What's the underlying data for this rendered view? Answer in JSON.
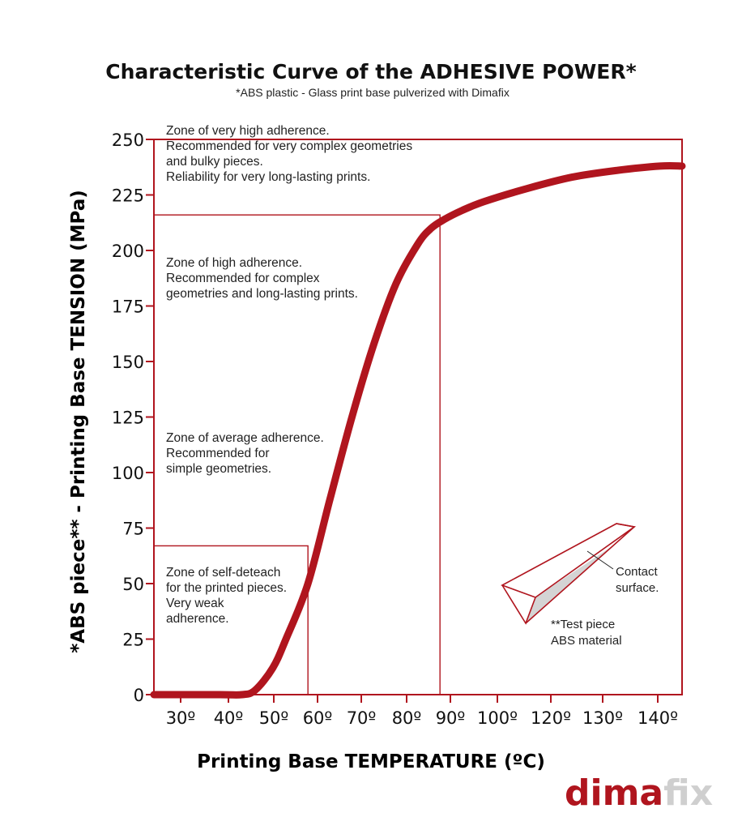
{
  "colors": {
    "accent": "#b0151e",
    "logo_secondary": "#cfcfcf",
    "text": "#111111"
  },
  "chart_data": {
    "type": "line",
    "title": "Characteristic Curve of the ADHESIVE POWER*",
    "subtitle": "*ABS plastic - Glass print base pulverized with Dimafix",
    "xlabel": "Printing Base TEMPERATURE (ºC)",
    "ylabel": "*ABS piece** - Printing Base TENSION (MPa)",
    "xlim": [
      25,
      145
    ],
    "ylim": [
      0,
      250
    ],
    "y_ticks": [
      0,
      25,
      50,
      75,
      100,
      125,
      150,
      175,
      200,
      225,
      250
    ],
    "y_tick_labels": [
      "0",
      "25",
      "50",
      "75",
      "100",
      "125",
      "150",
      "175",
      "200",
      "225",
      "250"
    ],
    "x_ticks": [
      30,
      40,
      50,
      60,
      70,
      80,
      90,
      100,
      120,
      130,
      140
    ],
    "x_tick_labels": [
      "30º",
      "40º",
      "50º",
      "60º",
      "70º",
      "80º",
      "90º",
      "100º",
      "120º",
      "130º",
      "140º"
    ],
    "series": [
      {
        "name": "Adhesive power",
        "x": [
          25,
          40,
          45,
          48,
          52,
          55,
          60,
          65,
          70,
          75,
          80,
          85,
          88,
          91,
          95,
          100,
          110,
          120,
          130,
          140,
          145
        ],
        "y": [
          0,
          0,
          0,
          2,
          12,
          25,
          50,
          88,
          125,
          158,
          185,
          203,
          210,
          214,
          218,
          222,
          228,
          233,
          236,
          238,
          238
        ]
      }
    ],
    "zones": [
      {
        "name": "very-high",
        "lines": [
          "Zone of very high adherence.",
          "Recommended for very complex geometries",
          "and bulky pieces.",
          "Reliability for very long-lasting prints."
        ]
      },
      {
        "name": "high",
        "lines": [
          "Zone of high adherence.",
          "Recommended for complex",
          "geometries and long-lasting prints."
        ]
      },
      {
        "name": "average",
        "lines": [
          "Zone of average adherence.",
          "Recommended for",
          "simple geometries."
        ]
      },
      {
        "name": "self-detach",
        "lines": [
          "Zone of self-deteach",
          "for the printed pieces.",
          "Very weak",
          "adherence."
        ]
      }
    ],
    "zone_boxes": [
      {
        "x_max": 145,
        "y_max": 250
      },
      {
        "x_max": 90,
        "y_max": 216
      },
      {
        "x_max": 60,
        "y_max": 67
      }
    ],
    "annotations": {
      "contact_surface": [
        "Contact",
        "surface."
      ],
      "test_piece": [
        "**Test piece",
        "ABS material"
      ]
    }
  },
  "logo": {
    "part1": "dima",
    "part2": "fix"
  }
}
